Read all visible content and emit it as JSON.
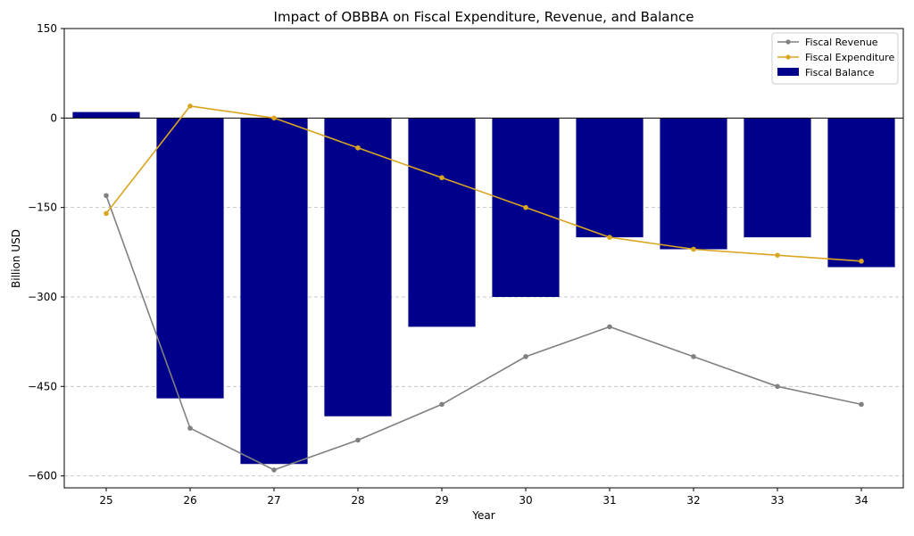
{
  "chart_data": {
    "type": "bar",
    "title": "Impact of OBBBA on Fiscal Expenditure, Revenue, and Balance",
    "xlabel": "Year",
    "ylabel": "Billion USD",
    "x": [
      "25",
      "26",
      "27",
      "28",
      "29",
      "30",
      "31",
      "32",
      "33",
      "34"
    ],
    "ylim": [
      -620,
      150
    ],
    "yticks": [
      150,
      0,
      -150,
      -300,
      -450,
      -600
    ],
    "ytick_labels": [
      "150",
      "0",
      "−150",
      "−300",
      "−450",
      "−600"
    ],
    "grid": "y-dashed",
    "legend_position": "top-right",
    "series": [
      {
        "name": "Fiscal Revenue",
        "kind": "line",
        "color": "#808080",
        "values": [
          -130,
          -520,
          -590,
          -540,
          -480,
          -400,
          -350,
          -400,
          -450,
          -480
        ]
      },
      {
        "name": "Fiscal Expenditure",
        "kind": "line",
        "color": "#DAA520",
        "values": [
          -160,
          20,
          0,
          -50,
          -100,
          -150,
          -200,
          -220,
          -230,
          -240
        ]
      },
      {
        "name": "Fiscal Balance",
        "kind": "bar",
        "color": "#00008B",
        "values": [
          10,
          -470,
          -580,
          -500,
          -350,
          -300,
          -200,
          -220,
          -200,
          -250
        ]
      }
    ]
  }
}
